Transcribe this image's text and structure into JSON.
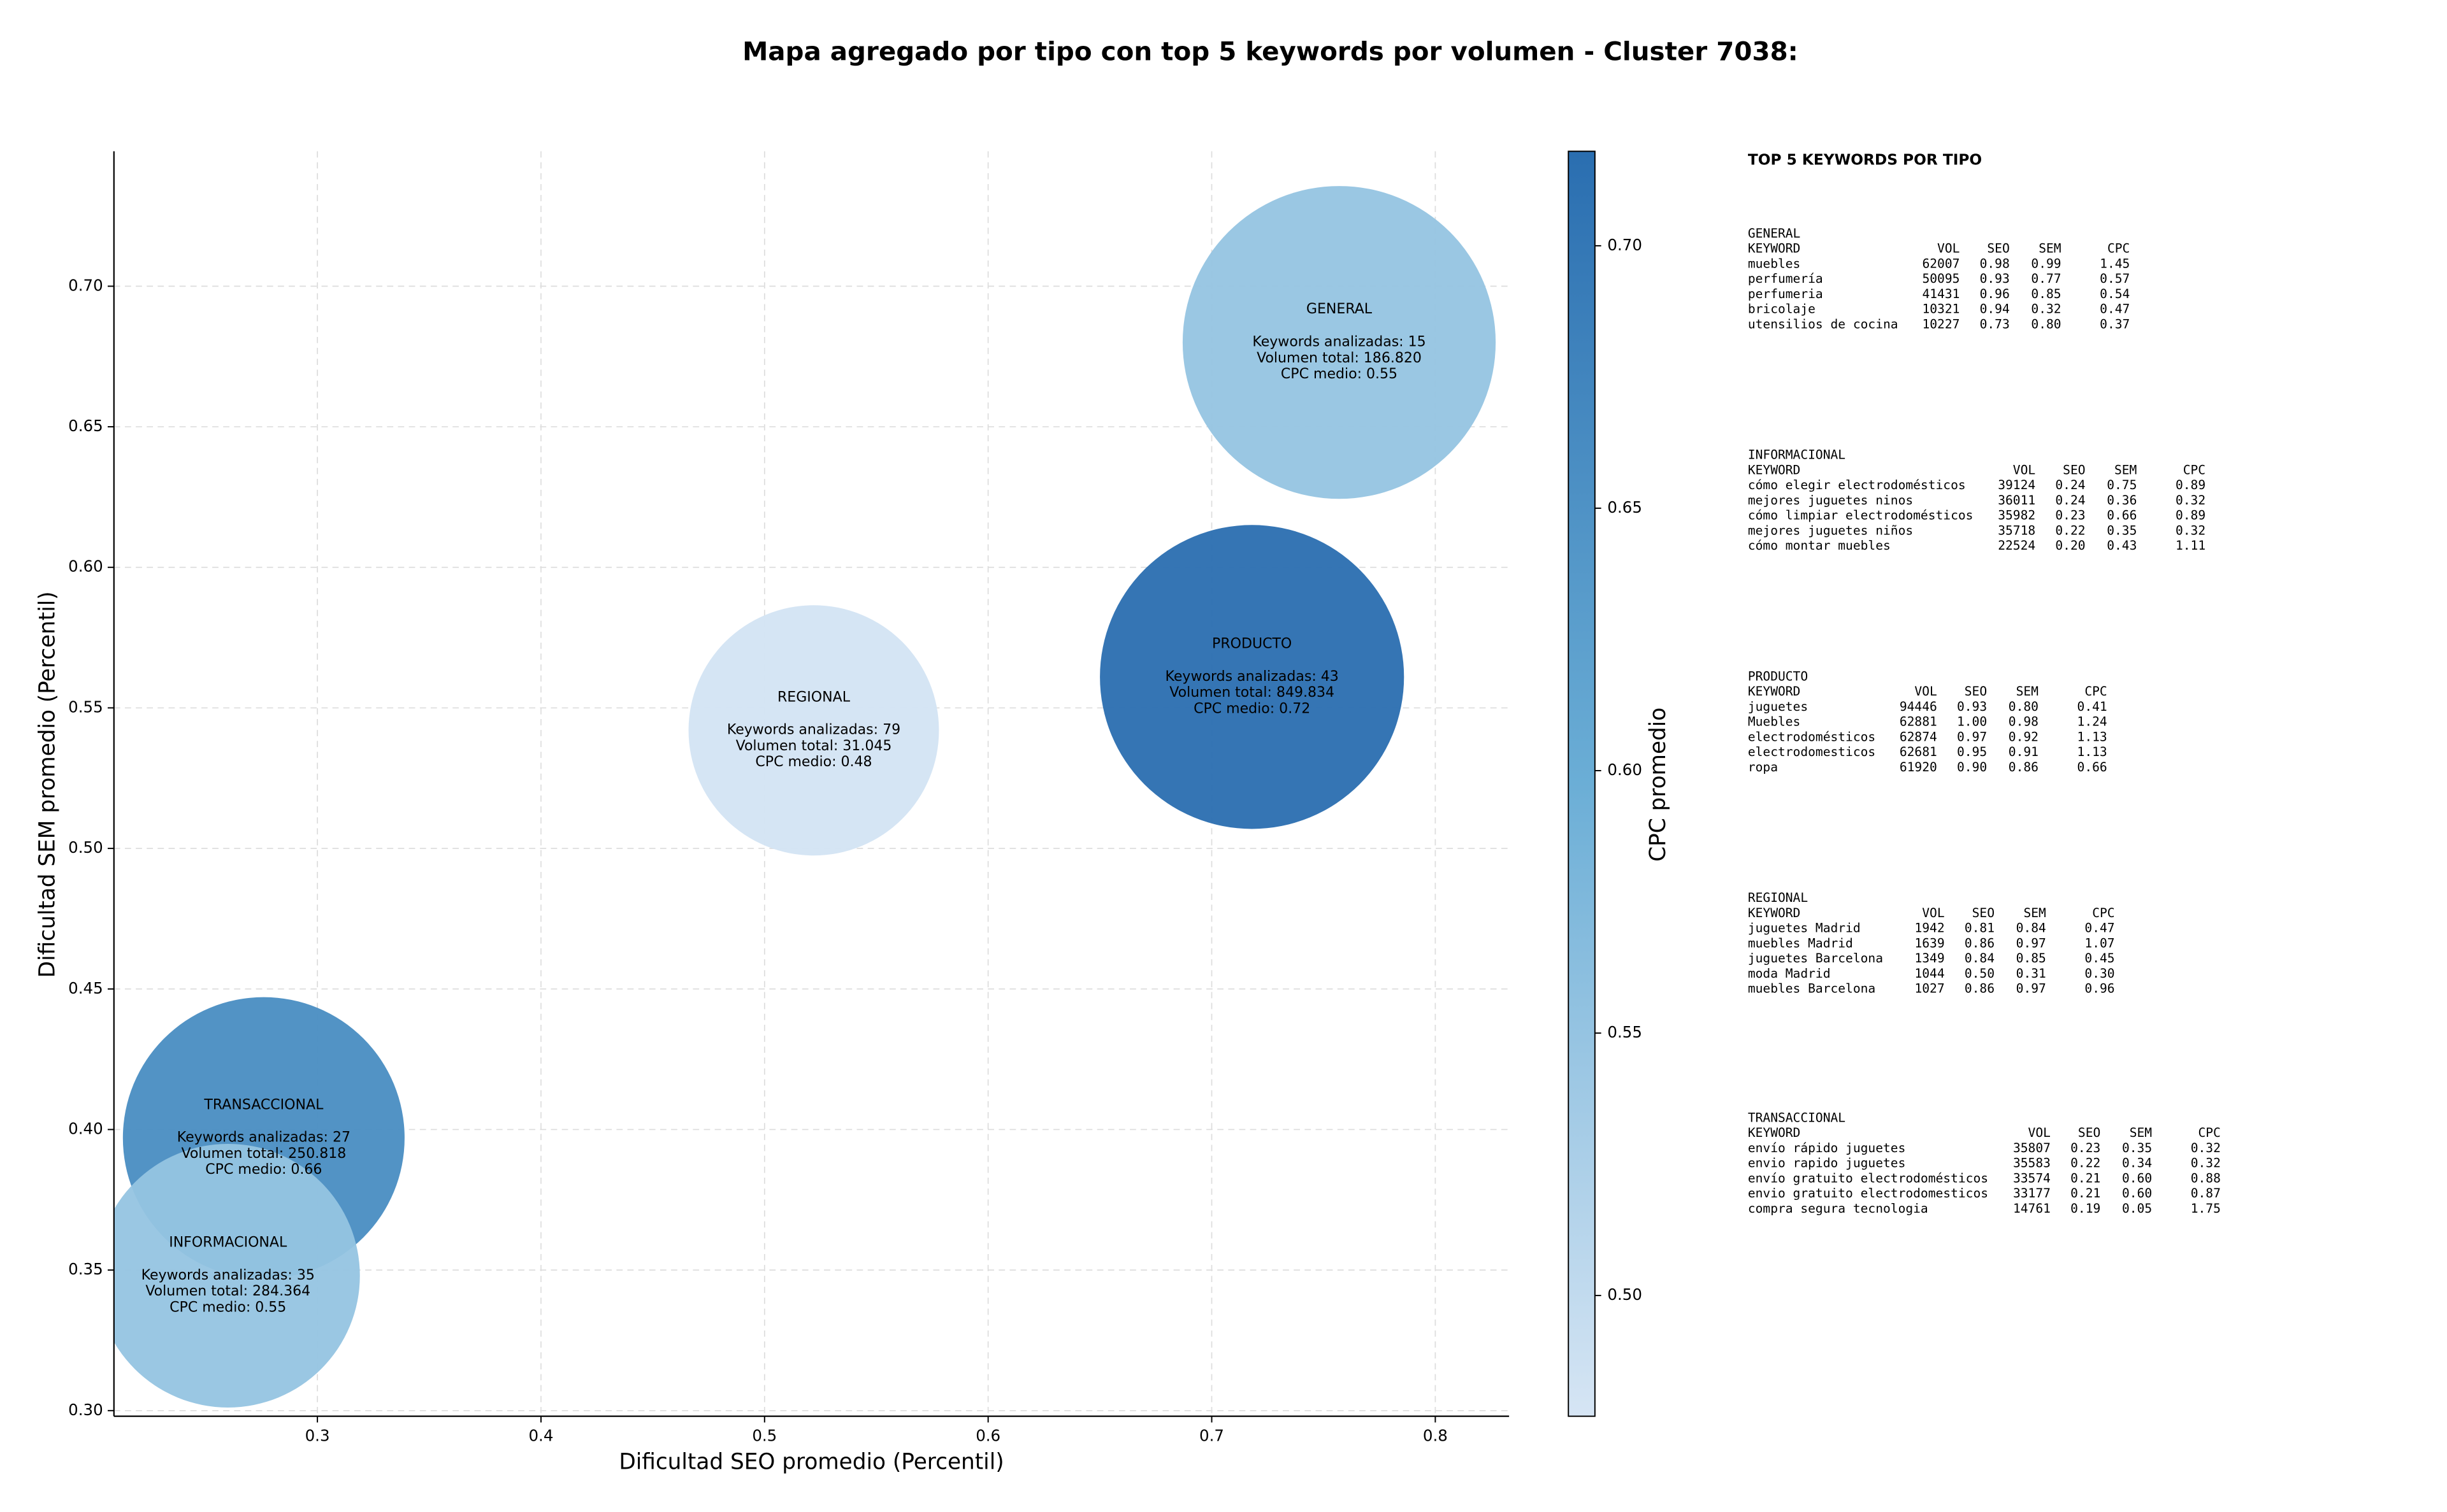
{
  "chart_data": {
    "type": "bubble",
    "title": "Mapa agregado por tipo con top 5 keywords por volumen - Cluster 7038:",
    "x_label": "Dificultad SEO promedio (Percentil)",
    "y_label": "Dificultad SEM promedio (Percentil)",
    "colorbar_label": "CPC promedio",
    "categories": [
      "GENERAL",
      "PRODUCTO",
      "REGIONAL",
      "TRANSACCIONAL",
      "INFORMACIONAL"
    ],
    "x": [
      0.757,
      0.718,
      0.522,
      0.276,
      0.26
    ],
    "values": [
      0.68,
      0.561,
      0.542,
      0.397,
      0.348
    ],
    "sizes": [
      0.07,
      0.068,
      0.056,
      0.063,
      0.059
    ],
    "color_values": [
      0.55,
      0.72,
      0.48,
      0.66,
      0.55
    ],
    "bubble_labels": [
      [
        "Keywords analizadas: 15",
        "Volumen total: 186.820",
        "CPC medio: 0.55"
      ],
      [
        "Keywords analizadas: 43",
        "Volumen total: 849.834",
        "CPC medio: 0.72"
      ],
      [
        "Keywords analizadas: 79",
        "Volumen total: 31.045",
        "CPC medio: 0.48"
      ],
      [
        "Keywords analizadas: 27",
        "Volumen total: 250.818",
        "CPC medio: 0.66"
      ],
      [
        "Keywords analizadas: 35",
        "Volumen total: 284.364",
        "CPC medio: 0.55"
      ]
    ],
    "colormap": [
      "#d6e5f4",
      "#6baed6",
      "#2a6eb0"
    ],
    "xlim": [
      0.209,
      0.833
    ],
    "xticks": [
      0.3,
      0.4,
      0.5,
      0.6,
      0.7,
      0.8
    ],
    "ylim": [
      0.298,
      0.748
    ],
    "yticks": [
      {
        "value": 0.3,
        "label": "0.30"
      },
      {
        "value": 0.35,
        "label": "0.35"
      },
      {
        "value": 0.4,
        "label": "0.40"
      },
      {
        "value": 0.45,
        "label": "0.45"
      },
      {
        "value": 0.5,
        "label": "0.50"
      },
      {
        "value": 0.55,
        "label": "0.55"
      },
      {
        "value": 0.6,
        "label": "0.60"
      },
      {
        "value": 0.65,
        "label": "0.65"
      },
      {
        "value": 0.7,
        "label": "0.70"
      }
    ],
    "clim": [
      0.477,
      0.718
    ],
    "cticks": [
      {
        "value": 0.5,
        "label": "0.50"
      },
      {
        "value": 0.55,
        "label": "0.55"
      },
      {
        "value": 0.6,
        "label": "0.60"
      },
      {
        "value": 0.65,
        "label": "0.65"
      },
      {
        "value": 0.7,
        "label": "0.70"
      }
    ],
    "grid": true
  },
  "keyword_panel": {
    "title": "TOP 5 KEYWORDS POR TIPO",
    "sections": [
      {
        "name": "GENERAL",
        "header": [
          "KEYWORD",
          "VOL",
          "SEO",
          "SEM",
          "CPC"
        ],
        "rows": [
          [
            "muebles",
            "62007",
            "0.98",
            "0.99",
            "1.45"
          ],
          [
            "perfumería",
            "50095",
            "0.93",
            "0.77",
            "0.57"
          ],
          [
            "perfumeria",
            "41431",
            "0.96",
            "0.85",
            "0.54"
          ],
          [
            "bricolaje",
            "10321",
            "0.94",
            "0.32",
            "0.47"
          ],
          [
            "utensilios de cocina",
            "10227",
            "0.73",
            "0.80",
            "0.37"
          ]
        ]
      },
      {
        "name": "INFORMACIONAL",
        "header": [
          "KEYWORD",
          "VOL",
          "SEO",
          "SEM",
          "CPC"
        ],
        "rows": [
          [
            "cómo elegir electrodomésticos",
            "39124",
            "0.24",
            "0.75",
            "0.89"
          ],
          [
            "mejores juguetes ninos",
            "36011",
            "0.24",
            "0.36",
            "0.32"
          ],
          [
            "cómo limpiar electrodomésticos",
            "35982",
            "0.23",
            "0.66",
            "0.89"
          ],
          [
            "mejores juguetes niños",
            "35718",
            "0.22",
            "0.35",
            "0.32"
          ],
          [
            "cómo montar muebles",
            "22524",
            "0.20",
            "0.43",
            "1.11"
          ]
        ]
      },
      {
        "name": "PRODUCTO",
        "header": [
          "KEYWORD",
          "VOL",
          "SEO",
          "SEM",
          "CPC"
        ],
        "rows": [
          [
            "juguetes",
            "94446",
            "0.93",
            "0.80",
            "0.41"
          ],
          [
            "Muebles",
            "62881",
            "1.00",
            "0.98",
            "1.24"
          ],
          [
            "electrodomésticos",
            "62874",
            "0.97",
            "0.92",
            "1.13"
          ],
          [
            "electrodomesticos",
            "62681",
            "0.95",
            "0.91",
            "1.13"
          ],
          [
            "ropa",
            "61920",
            "0.90",
            "0.86",
            "0.66"
          ]
        ]
      },
      {
        "name": "REGIONAL",
        "header": [
          "KEYWORD",
          "VOL",
          "SEO",
          "SEM",
          "CPC"
        ],
        "rows": [
          [
            "juguetes Madrid",
            "1942",
            "0.81",
            "0.84",
            "0.47"
          ],
          [
            "muebles Madrid",
            "1639",
            "0.86",
            "0.97",
            "1.07"
          ],
          [
            "juguetes Barcelona",
            "1349",
            "0.84",
            "0.85",
            "0.45"
          ],
          [
            "moda Madrid",
            "1044",
            "0.50",
            "0.31",
            "0.30"
          ],
          [
            "muebles Barcelona",
            "1027",
            "0.86",
            "0.97",
            "0.96"
          ]
        ]
      },
      {
        "name": "TRANSACCIONAL",
        "header": [
          "KEYWORD",
          "VOL",
          "SEO",
          "SEM",
          "CPC"
        ],
        "rows": [
          [
            "envío rápido juguetes",
            "35807",
            "0.23",
            "0.35",
            "0.32"
          ],
          [
            "envio rapido juguetes",
            "35583",
            "0.22",
            "0.34",
            "0.32"
          ],
          [
            "envío gratuito electrodomésticos",
            "33574",
            "0.21",
            "0.60",
            "0.88"
          ],
          [
            "envio gratuito electrodomesticos",
            "33177",
            "0.21",
            "0.60",
            "0.87"
          ],
          [
            "compra segura tecnologia",
            "14761",
            "0.19",
            "0.05",
            "1.75"
          ]
        ]
      }
    ]
  }
}
